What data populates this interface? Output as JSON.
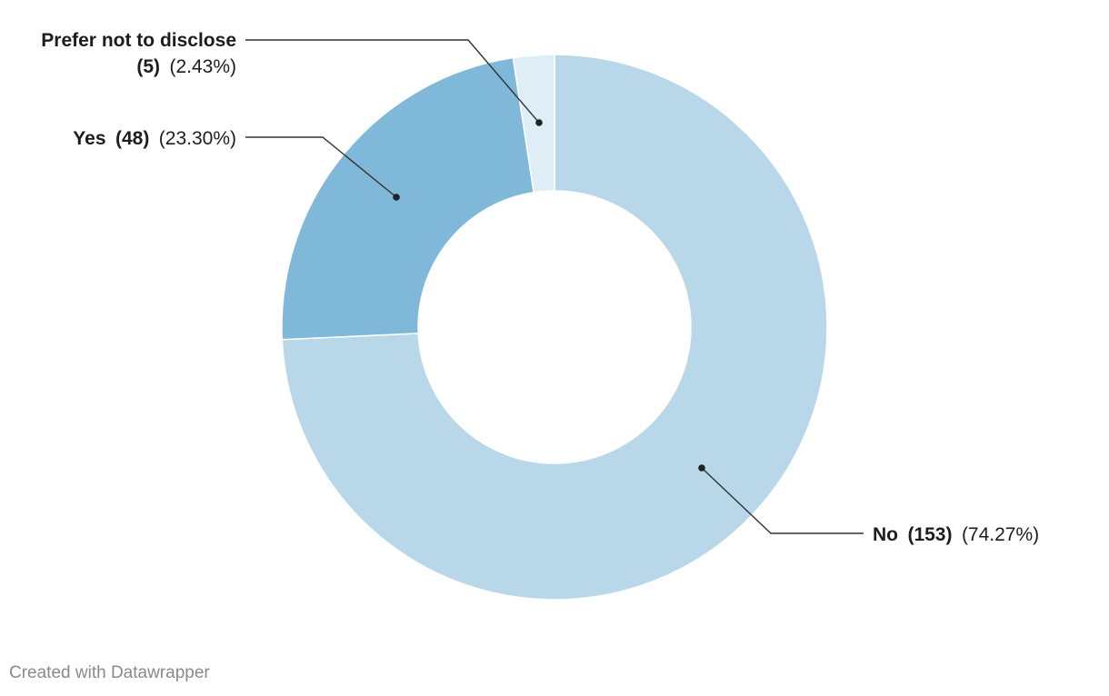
{
  "chart_data": {
    "type": "pie",
    "variant": "donut",
    "slices": [
      {
        "label": "No",
        "count_text": "(153)",
        "value": 153,
        "percent_text": "(74.27%)",
        "percent": 74.27,
        "color": "#b8d8ea"
      },
      {
        "label": "Yes",
        "count_text": "(48)",
        "value": 48,
        "percent_text": "(23.30%)",
        "percent": 23.3,
        "color": "#80b8d9"
      },
      {
        "label": "Prefer not to disclose",
        "count_text": "(5)",
        "value": 5,
        "percent_text": "(2.43%)",
        "percent": 2.43,
        "color": "#deedf6"
      }
    ]
  },
  "footer": {
    "text": "Created with Datawrapper"
  }
}
